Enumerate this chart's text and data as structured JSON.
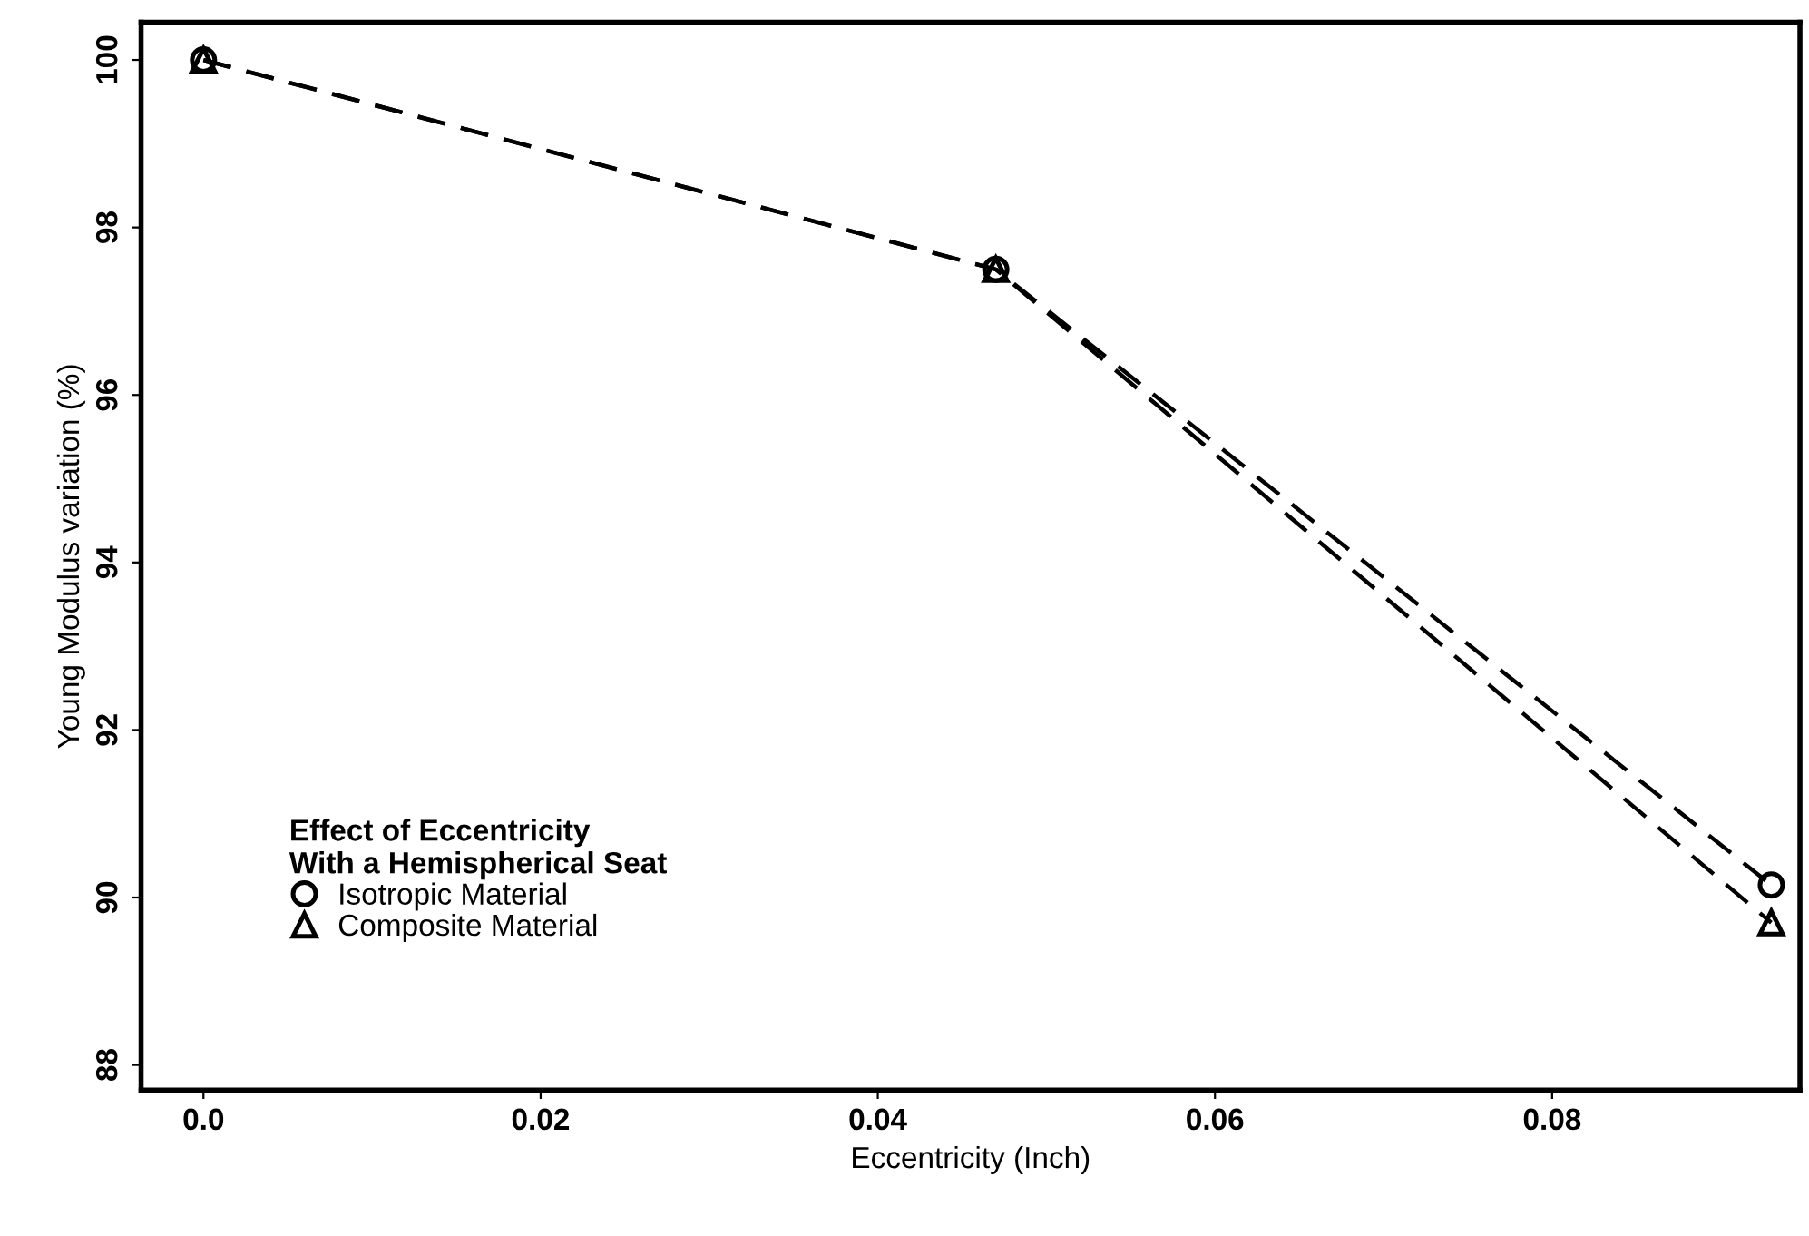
{
  "chart_data": {
    "type": "line",
    "xlabel": "Eccentricity (Inch)",
    "ylabel": "Young Modulus variation (%)",
    "legend_title": "Effect of Eccentricity\nWith a Hemispherical Seat",
    "legend": "bottom left",
    "line_style": "dashed",
    "grid": false,
    "x": [
      0.0,
      0.047,
      0.093
    ],
    "series": [
      {
        "name": "Isotropic Material",
        "color": "#000000",
        "marker": "circle",
        "values": [
          100.0,
          97.5,
          90.15
        ]
      },
      {
        "name": "Composite Material",
        "color": "#000000",
        "marker": "triangle",
        "values": [
          100.0,
          97.5,
          89.7
        ]
      }
    ],
    "xlim": [
      -0.0037,
      0.0947
    ],
    "ylim": [
      87.7,
      100.45
    ],
    "xticks": [
      {
        "value": 0,
        "label": "0.0"
      },
      0.02,
      0.04,
      0.06,
      0.08
    ],
    "yticks": [
      88,
      90,
      92,
      94,
      96,
      98,
      100
    ]
  }
}
